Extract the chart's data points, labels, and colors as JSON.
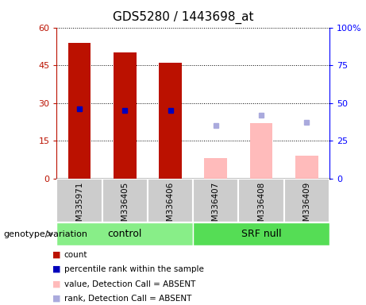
{
  "title": "GDS5280 / 1443698_at",
  "samples": [
    "GSM335971",
    "GSM336405",
    "GSM336406",
    "GSM336407",
    "GSM336408",
    "GSM336409"
  ],
  "count_values": [
    54,
    50,
    46,
    null,
    null,
    null
  ],
  "percentile_rank_values": [
    46,
    45,
    45,
    null,
    null,
    null
  ],
  "absent_value": [
    null,
    null,
    null,
    8,
    22,
    9
  ],
  "absent_rank": [
    null,
    null,
    null,
    35,
    42,
    37
  ],
  "ylim_left": [
    0,
    60
  ],
  "ylim_right": [
    0,
    100
  ],
  "yticks_left": [
    0,
    15,
    30,
    45,
    60
  ],
  "yticks_right": [
    0,
    25,
    50,
    75,
    100
  ],
  "bar_color_red": "#bb1100",
  "bar_color_pink": "#ffbbbb",
  "dot_color_blue": "#0000bb",
  "dot_color_lightblue": "#aaaadd",
  "group_color_control": "#88ee88",
  "group_color_srf": "#55dd55",
  "tick_label_area_color": "#cccccc",
  "legend_labels": [
    "count",
    "percentile rank within the sample",
    "value, Detection Call = ABSENT",
    "rank, Detection Call = ABSENT"
  ],
  "control_label": "control",
  "srf_label": "SRF null",
  "genotype_label": "genotype/variation"
}
